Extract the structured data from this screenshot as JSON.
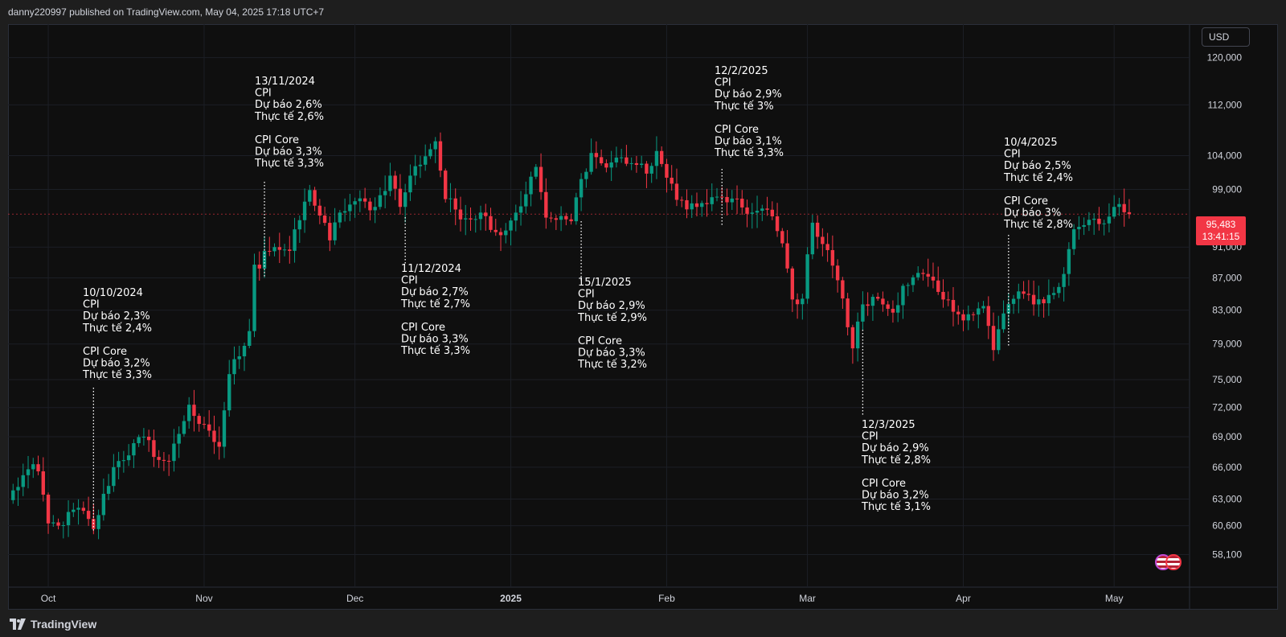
{
  "header": {
    "text": "danny220997 published on TradingView.com, May 04, 2025 17:18 UTC+7"
  },
  "footer": {
    "brand": "TradingView"
  },
  "toolbar": {
    "currency": "USD"
  },
  "price_badge": {
    "price": "95,483",
    "countdown": "13:41:15"
  },
  "colors": {
    "up": "#089981",
    "down": "#f23645",
    "background": "#0f0f0f",
    "grid": "#1c1f26",
    "text": "#d1d4dc"
  },
  "chart_data": {
    "type": "candlestick",
    "y_scale": "log",
    "ylim": [
      55400,
      126000
    ],
    "y_ticks": [
      {
        "value": 120000,
        "label": "120,000"
      },
      {
        "value": 112000,
        "label": "112,000"
      },
      {
        "value": 104000,
        "label": "104,000"
      },
      {
        "value": 99000,
        "label": "99,000"
      },
      {
        "value": 91000,
        "label": "91,000"
      },
      {
        "value": 87000,
        "label": "87,000"
      },
      {
        "value": 83000,
        "label": "83,000"
      },
      {
        "value": 79000,
        "label": "79,000"
      },
      {
        "value": 75000,
        "label": "75,000"
      },
      {
        "value": 72000,
        "label": "72,000"
      },
      {
        "value": 69000,
        "label": "69,000"
      },
      {
        "value": 66000,
        "label": "66,000"
      },
      {
        "value": 63000,
        "label": "63,000"
      },
      {
        "value": 60600,
        "label": "60,600"
      },
      {
        "value": 58100,
        "label": "58,100"
      }
    ],
    "x_range": [
      "2024-09-23",
      "2025-05-16"
    ],
    "x_ticks": [
      {
        "date": "2024-10-01",
        "label": "Oct"
      },
      {
        "date": "2024-11-01",
        "label": "Nov"
      },
      {
        "date": "2024-12-01",
        "label": "Dec"
      },
      {
        "date": "2025-01-01",
        "label": "2025"
      },
      {
        "date": "2025-02-01",
        "label": "Feb"
      },
      {
        "date": "2025-03-01",
        "label": "Mar"
      },
      {
        "date": "2025-04-01",
        "label": "Apr"
      },
      {
        "date": "2025-05-01",
        "label": "May"
      }
    ],
    "current_price": 95483,
    "anchors": [
      [
        "2024-09-23",
        62900
      ],
      [
        "2024-09-27",
        65800
      ],
      [
        "2024-09-29",
        65600
      ],
      [
        "2024-10-01",
        60800
      ],
      [
        "2024-10-03",
        60600
      ],
      [
        "2024-10-07",
        62200
      ],
      [
        "2024-10-10",
        60300
      ],
      [
        "2024-10-14",
        66000
      ],
      [
        "2024-10-20",
        69000
      ],
      [
        "2024-10-23",
        66700
      ],
      [
        "2024-10-25",
        66600
      ],
      [
        "2024-10-29",
        72300
      ],
      [
        "2024-10-31",
        70300
      ],
      [
        "2024-11-04",
        68000
      ],
      [
        "2024-11-06",
        75600
      ],
      [
        "2024-11-10",
        80500
      ],
      [
        "2024-11-11",
        88700
      ],
      [
        "2024-11-12",
        88200
      ],
      [
        "2024-11-13",
        90500
      ],
      [
        "2024-11-15",
        91000
      ],
      [
        "2024-11-18",
        90500
      ],
      [
        "2024-11-22",
        98900
      ],
      [
        "2024-11-26",
        91900
      ],
      [
        "2024-11-28",
        95700
      ],
      [
        "2024-12-01",
        97300
      ],
      [
        "2024-12-05",
        96500
      ],
      [
        "2024-12-08",
        101000
      ],
      [
        "2024-12-10",
        96500
      ],
      [
        "2024-12-12",
        101000
      ],
      [
        "2024-12-17",
        106200
      ],
      [
        "2024-12-19",
        97600
      ],
      [
        "2024-12-23",
        94900
      ],
      [
        "2024-12-26",
        95700
      ],
      [
        "2024-12-30",
        92600
      ],
      [
        "2025-01-01",
        94600
      ],
      [
        "2025-01-04",
        98300
      ],
      [
        "2025-01-06",
        102300
      ],
      [
        "2025-01-08",
        95000
      ],
      [
        "2025-01-10",
        94700
      ],
      [
        "2025-01-13",
        94500
      ],
      [
        "2025-01-15",
        100500
      ],
      [
        "2025-01-17",
        104400
      ],
      [
        "2025-01-20",
        102200
      ],
      [
        "2025-01-22",
        103700
      ],
      [
        "2025-01-26",
        102600
      ],
      [
        "2025-01-28",
        101300
      ],
      [
        "2025-01-30",
        104700
      ],
      [
        "2025-02-01",
        100700
      ],
      [
        "2025-02-03",
        97500
      ],
      [
        "2025-02-07",
        96500
      ],
      [
        "2025-02-12",
        97900
      ],
      [
        "2025-02-18",
        95700
      ],
      [
        "2025-02-21",
        96100
      ],
      [
        "2025-02-24",
        91500
      ],
      [
        "2025-02-26",
        84300
      ],
      [
        "2025-02-28",
        84400
      ],
      [
        "2025-03-02",
        94300
      ],
      [
        "2025-03-05",
        90600
      ],
      [
        "2025-03-07",
        86700
      ],
      [
        "2025-03-10",
        78500
      ],
      [
        "2025-03-12",
        83700
      ],
      [
        "2025-03-15",
        84400
      ],
      [
        "2025-03-18",
        82700
      ],
      [
        "2025-03-20",
        86000
      ],
      [
        "2025-03-24",
        87500
      ],
      [
        "2025-03-28",
        84300
      ],
      [
        "2025-03-31",
        82500
      ],
      [
        "2025-04-02",
        82500
      ],
      [
        "2025-04-05",
        83500
      ],
      [
        "2025-04-07",
        78300
      ],
      [
        "2025-04-09",
        82600
      ],
      [
        "2025-04-12",
        85300
      ],
      [
        "2025-04-15",
        83700
      ],
      [
        "2025-04-19",
        85100
      ],
      [
        "2025-04-21",
        87500
      ],
      [
        "2025-04-23",
        93400
      ],
      [
        "2025-04-26",
        94700
      ],
      [
        "2025-04-29",
        94200
      ],
      [
        "2025-05-01",
        96500
      ],
      [
        "2025-05-02",
        96900
      ],
      [
        "2025-05-04",
        95483
      ]
    ],
    "annotations": [
      {
        "date": "2024-10-10",
        "title": "10/10/2024",
        "lines": [
          "CPI",
          "Dự báo 2,3%",
          "Thực tế 2,4%",
          "",
          "CPI Core",
          "Dự báo 3,2%",
          "Thực tế 3,3%"
        ]
      },
      {
        "date": "2024-11-13",
        "title": "13/11/2024",
        "lines": [
          "CPI",
          "Dự báo 2,6%",
          "Thực tế 2,6%",
          "",
          "CPI Core",
          "Dự báo 3,3%",
          "Thực tế 3,3%"
        ]
      },
      {
        "date": "2024-12-11",
        "title": "11/12/2024",
        "lines": [
          "CPI",
          "Dự báo 2,7%",
          "Thực tế 2,7%",
          "",
          "CPI Core",
          "Dự báo 3,3%",
          "Thực tế 3,3%"
        ]
      },
      {
        "date": "2025-01-15",
        "title": "15/1/2025",
        "lines": [
          "CPI",
          "Dự báo 2,9%",
          "Thực tế 2,9%",
          "",
          "CPI Core",
          "Dự báo 3,3%",
          "Thực tế 3,2%"
        ]
      },
      {
        "date": "2025-02-12",
        "title": "12/2/2025",
        "lines": [
          "CPI",
          "Dự báo 2,9%",
          "Thực tế 3%",
          "",
          "CPI Core",
          "Dự báo 3,1%",
          "Thực tế 3,3%"
        ]
      },
      {
        "date": "2025-03-12",
        "title": "12/3/2025",
        "lines": [
          "CPI",
          "Dự báo 2,9%",
          "Thực tế 2,8%",
          "",
          "CPI Core",
          "Dự báo 3,2%",
          "Thực tế 3,1%"
        ]
      },
      {
        "date": "2025-04-10",
        "title": "10/4/2025",
        "lines": [
          "CPI",
          "Dự báo 2,5%",
          "Thực tế 2,4%",
          "",
          "CPI Core",
          "Dự báo 3%",
          "Thực tế 2,8%"
        ]
      }
    ]
  }
}
